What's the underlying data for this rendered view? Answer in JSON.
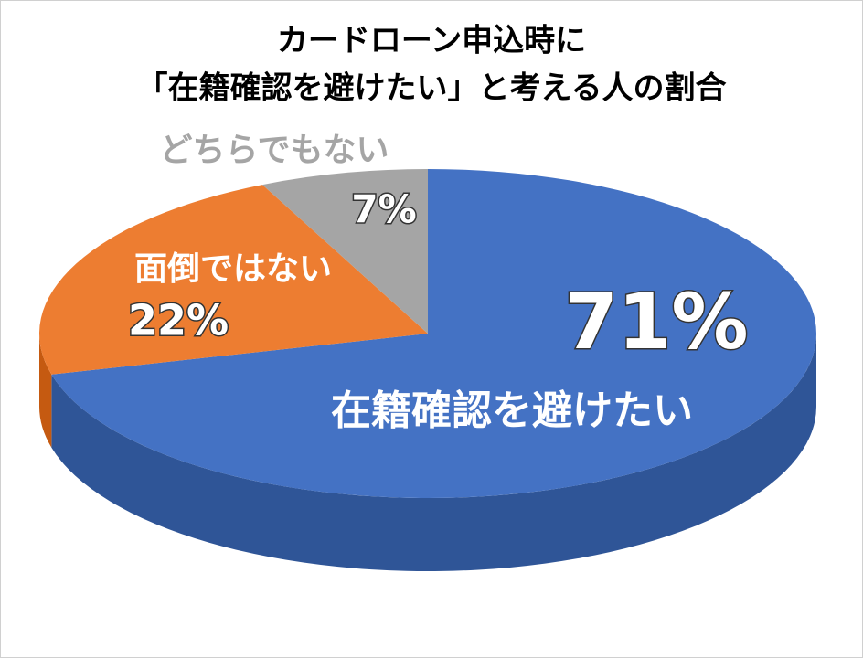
{
  "chart_data": {
    "type": "pie",
    "title": [
      "カードローン申込時に",
      "「在籍確認を避けたい」と考える人の割合"
    ],
    "categories": [
      "在籍確認を避けたい",
      "面倒ではない",
      "どちらでもない"
    ],
    "values": [
      71,
      22,
      7
    ],
    "value_labels": [
      "71%",
      "22%",
      "7%"
    ],
    "colors": [
      "#4472c4",
      "#ed7d31",
      "#a5a5a5"
    ],
    "side_colors": [
      "#2f5597",
      "#c55a11",
      "#7f7f7f"
    ]
  }
}
